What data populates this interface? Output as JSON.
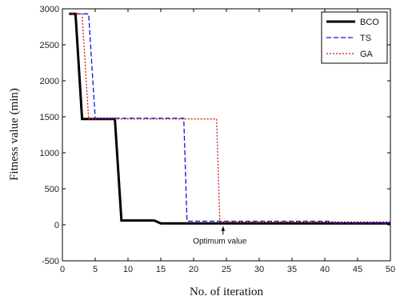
{
  "chart_data": {
    "type": "line",
    "xlabel": "No. of iteration",
    "ylabel": "Fitness value (min)",
    "xlim": [
      0,
      50
    ],
    "ylim": [
      -500,
      3000
    ],
    "xticks": [
      0,
      5,
      10,
      15,
      20,
      25,
      30,
      35,
      40,
      45,
      50
    ],
    "yticks": [
      -500,
      0,
      500,
      1000,
      1500,
      2000,
      2500,
      3000
    ],
    "grid": false,
    "legend_position": "top-right",
    "series": [
      {
        "name": "BCO",
        "color": "#000000",
        "style": "solid",
        "points": [
          [
            1,
            2930
          ],
          [
            2,
            2930
          ],
          [
            3,
            1470
          ],
          [
            8,
            1470
          ],
          [
            9,
            60
          ],
          [
            14,
            60
          ],
          [
            15,
            20
          ],
          [
            50,
            20
          ]
        ]
      },
      {
        "name": "TS",
        "color": "#1010e0",
        "style": "dashed",
        "points": [
          [
            1,
            2930
          ],
          [
            4,
            2930
          ],
          [
            5,
            1480
          ],
          [
            18.5,
            1480
          ],
          [
            19,
            50
          ],
          [
            41,
            50
          ],
          [
            41.5,
            20
          ],
          [
            50,
            20
          ]
        ]
      },
      {
        "name": "GA",
        "color": "#e01010",
        "style": "dotted",
        "points": [
          [
            1,
            2930
          ],
          [
            3,
            2930
          ],
          [
            4,
            1470
          ],
          [
            23.5,
            1470
          ],
          [
            24,
            40
          ],
          [
            50,
            40
          ]
        ]
      }
    ],
    "annotations": [
      {
        "text": "Optimum value",
        "x": 24,
        "y": -260,
        "arrow_to": [
          24.5,
          10
        ]
      }
    ]
  }
}
